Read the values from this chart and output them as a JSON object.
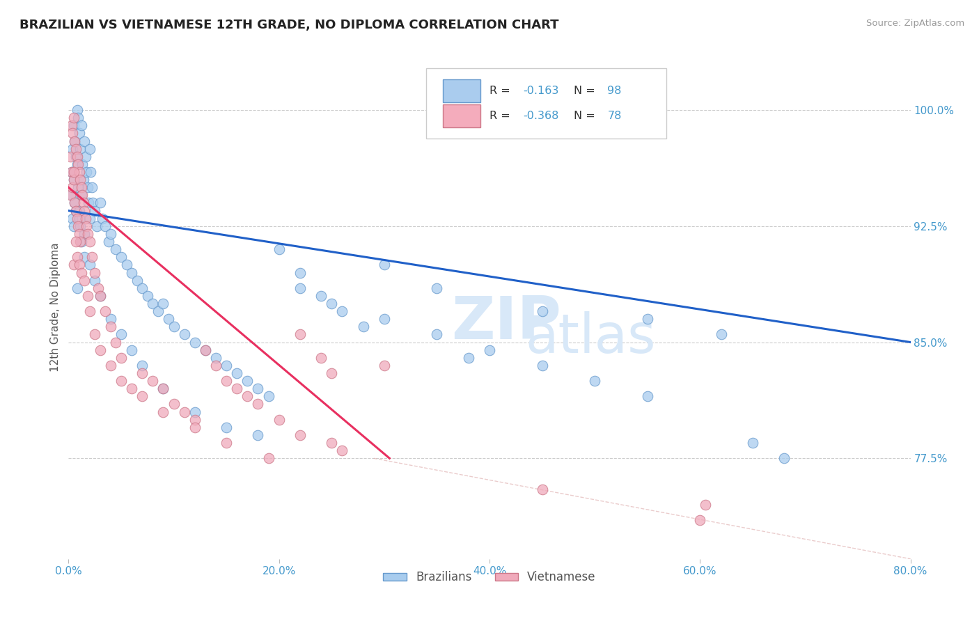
{
  "title": "BRAZILIAN VS VIETNAMESE 12TH GRADE, NO DIPLOMA CORRELATION CHART",
  "source": "Source: ZipAtlas.com",
  "ylabel": "12th Grade, No Diploma",
  "x_tick_labels": [
    "0.0%",
    "20.0%",
    "40.0%",
    "60.0%",
    "80.0%"
  ],
  "x_ticks": [
    0.0,
    20.0,
    40.0,
    60.0,
    80.0
  ],
  "y_tick_labels": [
    "100.0%",
    "92.5%",
    "85.0%",
    "77.5%"
  ],
  "y_ticks": [
    100.0,
    92.5,
    85.0,
    77.5
  ],
  "xlim": [
    0.0,
    80.0
  ],
  "ylim": [
    71.0,
    103.5
  ],
  "legend_labels": [
    "Brazilians",
    "Vietnamese"
  ],
  "r_blue": -0.163,
  "n_blue": 98,
  "r_pink": -0.368,
  "n_pink": 78,
  "dot_color_blue": "#A8CCEE",
  "dot_color_pink": "#F0AABB",
  "line_color_blue": "#2060C8",
  "line_color_pink": "#E83060",
  "legend_box_blue": "#AACCEE",
  "legend_box_pink": "#F4ACBC",
  "title_color": "#222222",
  "axis_label_color": "#555555",
  "tick_label_color": "#4499CC",
  "source_color": "#999999",
  "grid_color": "#CCCCCC",
  "watermark_color": "#D8E8F8",
  "blue_reg_x0": 0.0,
  "blue_reg_x1": 80.0,
  "blue_reg_y0": 93.5,
  "blue_reg_y1": 85.0,
  "pink_reg_x0": 0.0,
  "pink_reg_x1": 30.5,
  "pink_reg_y0": 95.0,
  "pink_reg_y1": 77.5,
  "diag_x0": 29.0,
  "diag_x1": 80.0,
  "diag_y0": 77.5,
  "diag_y1": 71.0,
  "blue_scatter_x": [
    0.3,
    0.3,
    0.4,
    0.4,
    0.5,
    0.5,
    0.5,
    0.6,
    0.6,
    0.7,
    0.7,
    0.8,
    0.8,
    0.9,
    0.9,
    1.0,
    1.0,
    1.1,
    1.1,
    1.2,
    1.2,
    1.3,
    1.4,
    1.5,
    1.5,
    1.6,
    1.7,
    1.8,
    1.9,
    2.0,
    2.0,
    2.1,
    2.2,
    2.3,
    2.5,
    2.7,
    3.0,
    3.2,
    3.5,
    3.8,
    4.0,
    4.5,
    5.0,
    5.5,
    6.0,
    6.5,
    7.0,
    7.5,
    8.0,
    8.5,
    9.0,
    9.5,
    10.0,
    11.0,
    12.0,
    13.0,
    14.0,
    15.0,
    16.0,
    17.0,
    18.0,
    19.0,
    20.0,
    22.0,
    24.0,
    26.0,
    28.0,
    30.0,
    35.0,
    38.0,
    45.0,
    55.0,
    62.0,
    1.0,
    1.2,
    1.5,
    0.8,
    2.0,
    2.5,
    3.0,
    4.0,
    5.0,
    6.0,
    7.0,
    9.0,
    12.0,
    15.0,
    18.0,
    22.0,
    25.0,
    30.0,
    35.0,
    40.0,
    45.0,
    50.0,
    55.0,
    65.0,
    68.0
  ],
  "blue_scatter_y": [
    96.0,
    94.5,
    97.5,
    93.0,
    99.0,
    95.5,
    92.5,
    98.0,
    94.0,
    97.0,
    93.5,
    100.0,
    96.5,
    99.5,
    95.0,
    98.5,
    93.0,
    97.5,
    92.5,
    99.0,
    94.5,
    96.5,
    95.5,
    98.0,
    92.0,
    97.0,
    96.0,
    95.0,
    94.0,
    97.5,
    93.0,
    96.0,
    95.0,
    94.0,
    93.5,
    92.5,
    94.0,
    93.0,
    92.5,
    91.5,
    92.0,
    91.0,
    90.5,
    90.0,
    89.5,
    89.0,
    88.5,
    88.0,
    87.5,
    87.0,
    87.5,
    86.5,
    86.0,
    85.5,
    85.0,
    84.5,
    84.0,
    83.5,
    83.0,
    82.5,
    82.0,
    81.5,
    91.0,
    89.5,
    88.0,
    87.0,
    86.0,
    90.0,
    88.5,
    84.0,
    87.0,
    86.5,
    85.5,
    93.5,
    91.5,
    90.5,
    88.5,
    90.0,
    89.0,
    88.0,
    86.5,
    85.5,
    84.5,
    83.5,
    82.0,
    80.5,
    79.5,
    79.0,
    88.5,
    87.5,
    86.5,
    85.5,
    84.5,
    83.5,
    82.5,
    81.5,
    78.5,
    77.5
  ],
  "pink_scatter_x": [
    0.2,
    0.2,
    0.3,
    0.3,
    0.4,
    0.4,
    0.5,
    0.5,
    0.6,
    0.6,
    0.7,
    0.7,
    0.8,
    0.8,
    0.9,
    0.9,
    1.0,
    1.0,
    1.1,
    1.1,
    1.2,
    1.3,
    1.4,
    1.5,
    1.6,
    1.7,
    1.8,
    2.0,
    2.2,
    2.5,
    2.8,
    3.0,
    3.5,
    4.0,
    4.5,
    5.0,
    6.0,
    7.0,
    8.0,
    9.0,
    10.0,
    11.0,
    12.0,
    13.0,
    14.0,
    15.0,
    16.0,
    17.0,
    18.0,
    20.0,
    22.0,
    24.0,
    25.0,
    0.5,
    0.5,
    0.7,
    0.8,
    1.0,
    1.2,
    1.5,
    1.8,
    2.0,
    2.5,
    3.0,
    4.0,
    5.0,
    7.0,
    9.0,
    12.0,
    15.0,
    19.0,
    22.0,
    25.0,
    26.0,
    30.0,
    45.0,
    60.0,
    60.5
  ],
  "pink_scatter_y": [
    97.0,
    94.5,
    99.0,
    96.0,
    98.5,
    95.0,
    99.5,
    95.5,
    98.0,
    94.0,
    97.5,
    93.5,
    97.0,
    93.0,
    96.5,
    92.5,
    96.0,
    92.0,
    95.5,
    91.5,
    95.0,
    94.5,
    94.0,
    93.5,
    93.0,
    92.5,
    92.0,
    91.5,
    90.5,
    89.5,
    88.5,
    88.0,
    87.0,
    86.0,
    85.0,
    84.0,
    82.0,
    83.0,
    82.5,
    82.0,
    81.0,
    80.5,
    80.0,
    84.5,
    83.5,
    82.5,
    82.0,
    81.5,
    81.0,
    80.0,
    85.5,
    84.0,
    83.0,
    96.0,
    90.0,
    91.5,
    90.5,
    90.0,
    89.5,
    89.0,
    88.0,
    87.0,
    85.5,
    84.5,
    83.5,
    82.5,
    81.5,
    80.5,
    79.5,
    78.5,
    77.5,
    79.0,
    78.5,
    78.0,
    83.5,
    75.5,
    73.5,
    74.5
  ]
}
